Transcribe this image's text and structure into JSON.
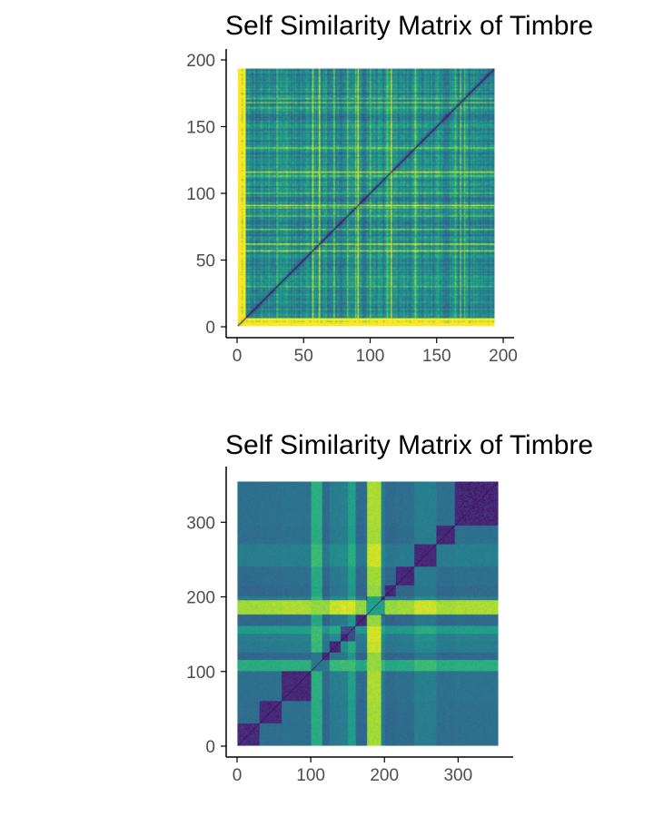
{
  "chart_data": [
    {
      "type": "heatmap",
      "title": "Self Similarity Matrix of Timbre",
      "xlabel": "",
      "ylabel": "",
      "n": 193,
      "xlim": [
        0,
        200
      ],
      "ylim": [
        0,
        200
      ],
      "x_ticks": [
        0,
        50,
        100,
        150,
        200
      ],
      "y_ticks": [
        0,
        50,
        100,
        150,
        200
      ],
      "colormap": "viridis",
      "structure": "noisy, mostly low-distance blue/purple; bright yellow-green rows/cols near index 0-5 and scattered stripes; dark diagonal"
    },
    {
      "type": "heatmap",
      "title": "Self Similarity Matrix of Timbre",
      "xlabel": "",
      "ylabel": "",
      "n": 354,
      "xlim": [
        0,
        360
      ],
      "ylim": [
        0,
        360
      ],
      "x_ticks": [
        0,
        100,
        200,
        300
      ],
      "y_ticks": [
        0,
        100,
        200,
        300
      ],
      "colormap": "viridis",
      "structure": "block-structured sections with dark diagonal blocks; bright yellow-green vertical/horizontal bands near 100-115 and 175-195"
    }
  ],
  "colors": {
    "viridis_low": "#440154",
    "viridis_mid": "#21908c",
    "viridis_high": "#fde725",
    "axis": "#000000",
    "tick_label": "#4d4d4d"
  }
}
